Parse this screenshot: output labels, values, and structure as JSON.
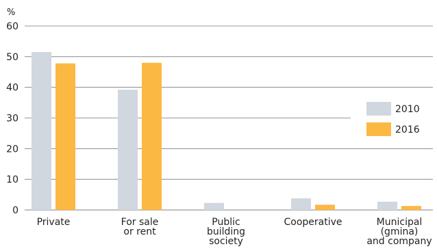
{
  "chart_data": {
    "type": "bar",
    "ylabel": "%",
    "ylim": [
      0,
      60
    ],
    "yticks": [
      0,
      10,
      20,
      30,
      40,
      50,
      60
    ],
    "categories": [
      [
        "Private"
      ],
      [
        "For sale",
        "or rent"
      ],
      [
        "Public",
        "building",
        "society"
      ],
      [
        "Cooperative"
      ],
      [
        "Municipal",
        "(gmina)",
        "and company"
      ]
    ],
    "series": [
      {
        "name": "2010",
        "color": "#d0d7de",
        "values": [
          51.5,
          39.2,
          2.3,
          3.8,
          2.7
        ]
      },
      {
        "name": "2016",
        "color": "#fbb843",
        "values": [
          47.8,
          48.0,
          0.0,
          1.7,
          1.3
        ]
      }
    ],
    "legend_position": "right",
    "grid": true
  }
}
